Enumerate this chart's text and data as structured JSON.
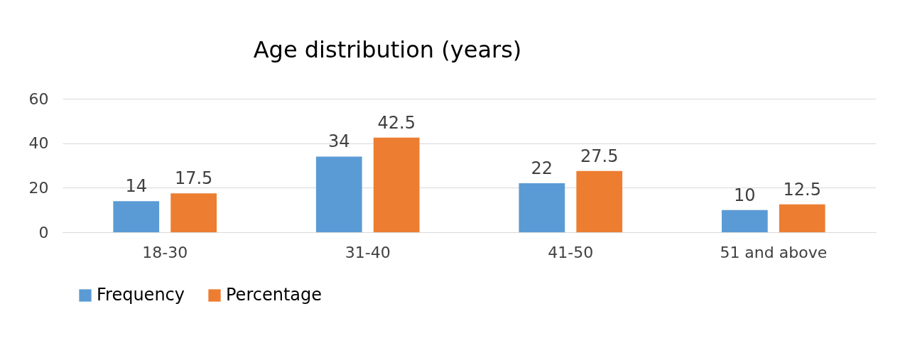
{
  "chart_data": {
    "type": "bar",
    "title": "Age distribution (years)",
    "categories": [
      "18-30",
      "31-40",
      "41-50",
      "51 and above"
    ],
    "series": [
      {
        "name": "Frequency",
        "color": "#5b9bd5",
        "values": [
          14,
          34,
          22,
          10
        ]
      },
      {
        "name": "Percentage",
        "color": "#ed7d31",
        "values": [
          17.5,
          42.5,
          27.5,
          12.5
        ]
      }
    ],
    "ylim": [
      0,
      60
    ],
    "yticks": [
      0,
      20,
      40,
      60
    ],
    "grid": "y",
    "legend": "bottom",
    "data_labels": true
  }
}
